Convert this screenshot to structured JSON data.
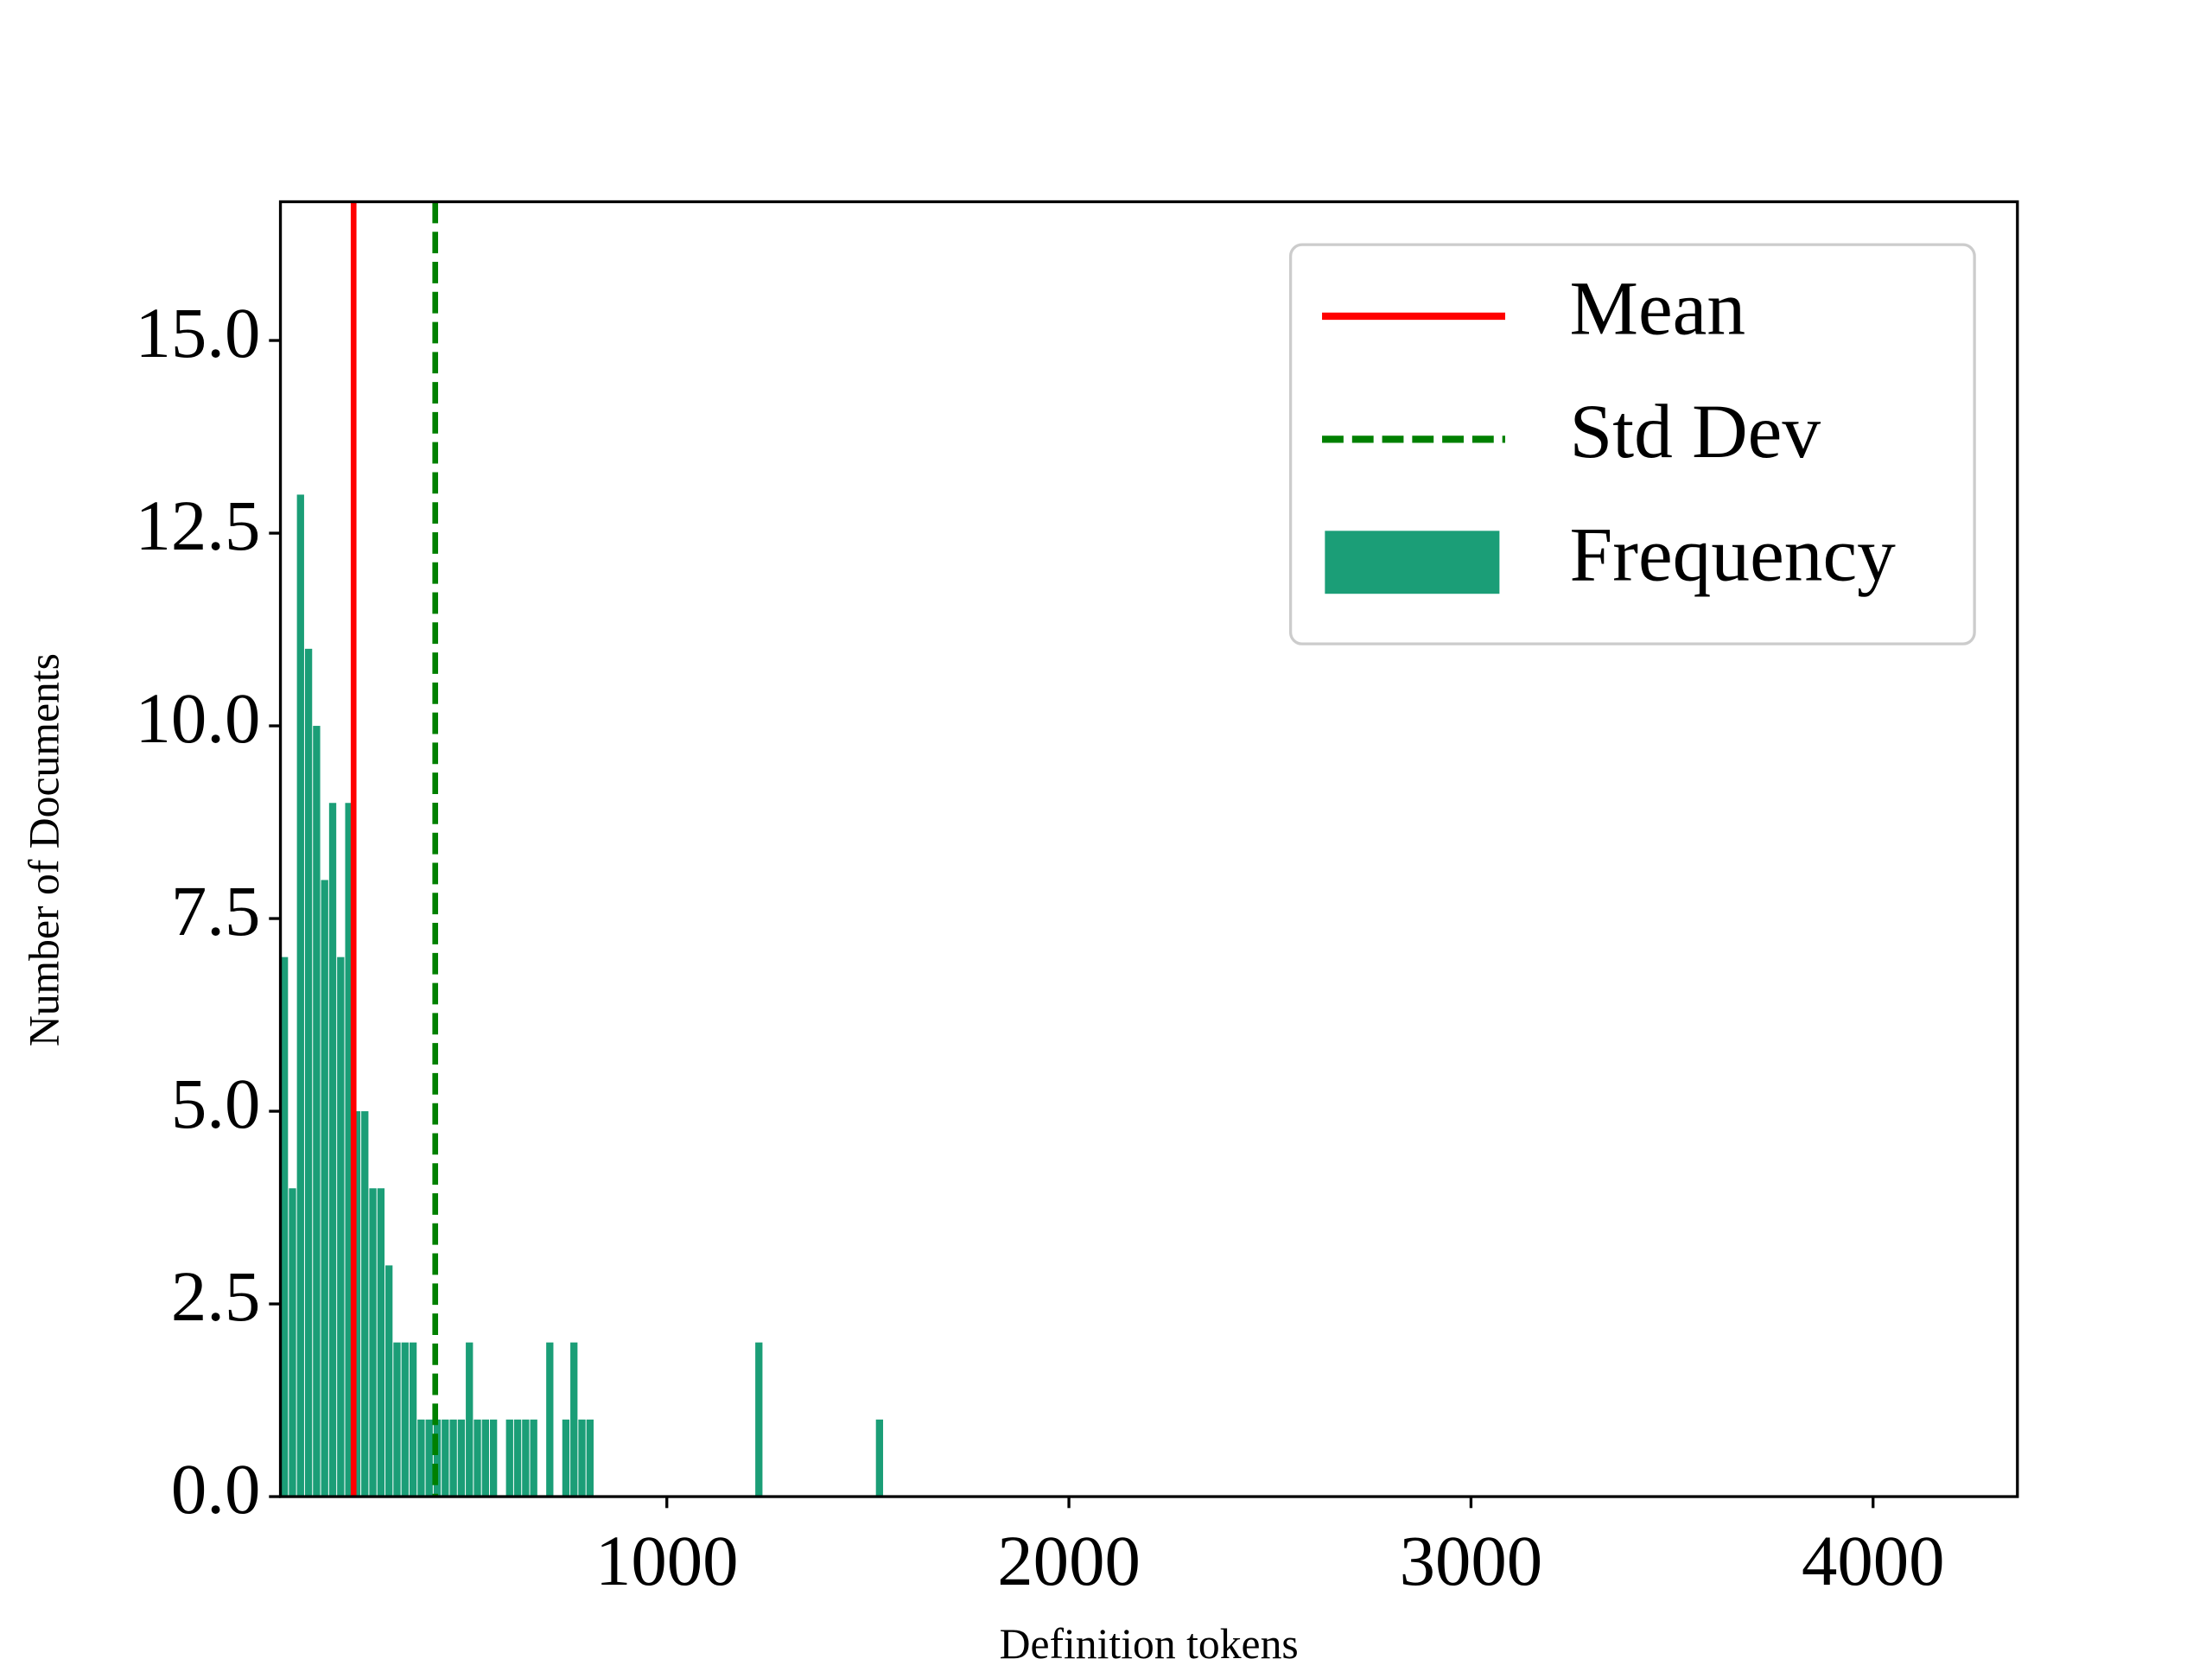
{
  "chart_data": {
    "type": "histogram",
    "xlabel": "Definition tokens",
    "ylabel": "Number of Documents",
    "bins": [
      40,
      60,
      80,
      100,
      120,
      140,
      160,
      180,
      200,
      220,
      240,
      260,
      280,
      300,
      320,
      340,
      360,
      380,
      400,
      420,
      440,
      460,
      480,
      500,
      520,
      540,
      560,
      580,
      600,
      620,
      640,
      660,
      680,
      700,
      720,
      740,
      760,
      780,
      800,
      820,
      840,
      860,
      880,
      900,
      920,
      940,
      960,
      980,
      1000,
      1020,
      1040,
      1060,
      1080,
      1100,
      1120,
      1140,
      1160,
      1180,
      1200,
      1220,
      1240,
      1260,
      1280,
      1300,
      1320,
      1340,
      1360,
      1380,
      1400,
      1420,
      1440,
      1460,
      1480,
      1500,
      1520,
      1540
    ],
    "series": [
      {
        "name": "Frequency",
        "color": "#1b9e77",
        "values": [
          7,
          4,
          13,
          11,
          10,
          8,
          9,
          7,
          9,
          5,
          5,
          4,
          4,
          3,
          2,
          2,
          2,
          1,
          1,
          1,
          1,
          1,
          1,
          2,
          1,
          1,
          1,
          0,
          1,
          1,
          1,
          1,
          0,
          2,
          0,
          1,
          2,
          1,
          1,
          0,
          0,
          0,
          0,
          0,
          0,
          0,
          0,
          0,
          0,
          0,
          0,
          0,
          0,
          0,
          0,
          0,
          0,
          0,
          0,
          2,
          0,
          0,
          0,
          0,
          0,
          0,
          0,
          0,
          0,
          0,
          0,
          0,
          0,
          0,
          1
        ]
      }
    ],
    "vlines": [
      {
        "name": "Mean",
        "value": 221,
        "color": "#ff0000",
        "style": "solid"
      },
      {
        "name": "Std Dev",
        "value": 424,
        "color": "#008000",
        "style": "dashed"
      }
    ],
    "xlim": [
      39,
      4359
    ],
    "ylim": [
      0,
      16.8
    ],
    "xticks": [
      1000,
      2000,
      3000,
      4000
    ],
    "yticks": [
      {
        "value": 0,
        "label": "0.0"
      },
      2.5,
      {
        "value": 5,
        "label": "5.0"
      },
      7.5,
      {
        "value": 10,
        "label": "10.0"
      },
      12.5,
      {
        "value": 15,
        "label": "15.0"
      }
    ],
    "legend": "upper right"
  }
}
